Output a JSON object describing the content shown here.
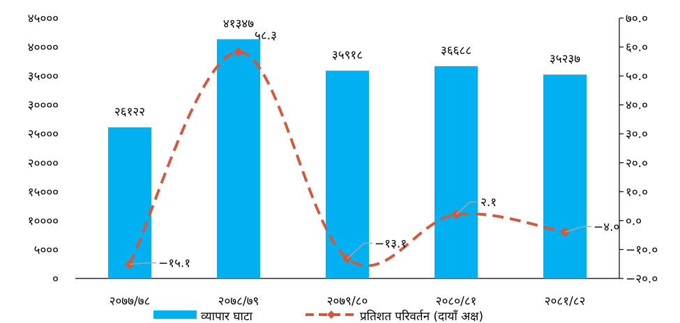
{
  "chart_data": {
    "type": "bar",
    "categories": [
      "२०७७/७८",
      "२०७८/७९",
      "२०७९/८०",
      "२०८०/८१",
      "२०८१/८२"
    ],
    "series": [
      {
        "name": "व्यापार घाटा",
        "type": "bar",
        "axis": "left",
        "color": "#00b0f0",
        "values": [
          26122,
          41347,
          35918,
          36688,
          35237
        ],
        "labels": [
          "२६१२२",
          "४१३४७",
          "३५९१८",
          "३६६८८",
          "३५२३७"
        ]
      },
      {
        "name": "प्रतिशत परिवर्तन (दायाँ अक्ष)",
        "type": "line",
        "axis": "right",
        "style": "dashed",
        "color": "#d05a3f",
        "values": [
          -15.1,
          58.3,
          -13.1,
          2.1,
          -4.0
        ],
        "labels": [
          "−१५.१",
          "५८.३",
          "−१३.१",
          "२.१",
          "−४.०"
        ]
      }
    ],
    "y_left": {
      "range": [
        0,
        45000
      ],
      "ticks": [
        0,
        5000,
        10000,
        15000,
        20000,
        25000,
        30000,
        35000,
        40000,
        45000
      ],
      "tick_labels": [
        "०",
        "५०००",
        "१००००",
        "१५०००",
        "२००००",
        "२५०००",
        "३००००",
        "३५०००",
        "४००००",
        "४५०००"
      ]
    },
    "y_right": {
      "range": [
        -20,
        70
      ],
      "ticks": [
        -20,
        -10,
        0,
        10,
        20,
        30,
        40,
        50,
        60,
        70
      ],
      "tick_labels": [
        "−२०.०",
        "−१०.०",
        "०.०",
        "१०.०",
        "२०.०",
        "३०.०",
        "४०.०",
        "५०.०",
        "६०.०",
        "७०.०"
      ]
    },
    "grid": false,
    "legend": "bottom"
  }
}
